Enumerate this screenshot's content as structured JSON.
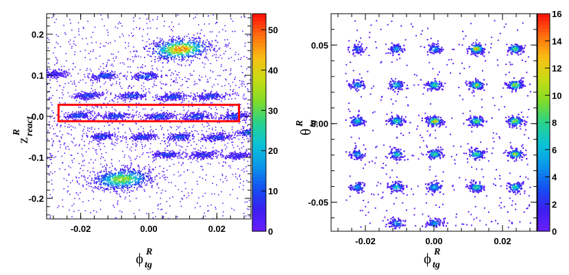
{
  "chart_data": [
    {
      "type": "heatmap",
      "xlabel": {
        "symbol": "ϕ",
        "sup": "R",
        "sub": "tg"
      },
      "ylabel": {
        "symbol": "z",
        "sup": "R",
        "sub": "react"
      },
      "xlim": [
        -0.03,
        0.03
      ],
      "ylim": [
        -0.25,
        0.25
      ],
      "xticks": [
        -0.02,
        0.0,
        0.02
      ],
      "xtick_labels": [
        "-0.02",
        "0.00",
        "0.02"
      ],
      "yticks": [
        -0.2,
        -0.1,
        0.0,
        0.1,
        0.2
      ],
      "ytick_labels": [
        "-0.2",
        "-0.1",
        "0.0",
        "0.1",
        "0.2"
      ],
      "zlim": [
        0,
        54
      ],
      "zticks": [
        0,
        10,
        20,
        30,
        40,
        50
      ],
      "ztick_labels": [
        "0",
        "10",
        "20",
        "30",
        "40",
        "50"
      ],
      "highlight_box": {
        "x": [
          -0.0265,
          0.0265
        ],
        "y": [
          -0.012,
          0.028
        ],
        "color": "#ff0000"
      },
      "clusters": [
        {
          "x": 0.009,
          "y": 0.165,
          "peak": 54
        },
        {
          "x": -0.008,
          "y": -0.152,
          "peak": 40
        },
        {
          "x": -0.028,
          "y": 0.104,
          "peak": 6
        },
        {
          "x": -0.013,
          "y": 0.1,
          "peak": 12
        },
        {
          "x": -0.001,
          "y": 0.099,
          "peak": 14
        },
        {
          "x": -0.018,
          "y": 0.052,
          "peak": 10
        },
        {
          "x": -0.005,
          "y": 0.051,
          "peak": 12
        },
        {
          "x": 0.007,
          "y": 0.049,
          "peak": 12
        },
        {
          "x": 0.018,
          "y": 0.05,
          "peak": 10
        },
        {
          "x": -0.021,
          "y": 0.003,
          "peak": 12
        },
        {
          "x": -0.01,
          "y": 0.002,
          "peak": 12
        },
        {
          "x": 0.003,
          "y": 0.001,
          "peak": 12
        },
        {
          "x": 0.014,
          "y": 0.001,
          "peak": 12
        },
        {
          "x": 0.025,
          "y": 0.001,
          "peak": 12
        },
        {
          "x": -0.014,
          "y": -0.048,
          "peak": 10
        },
        {
          "x": -0.002,
          "y": -0.049,
          "peak": 10
        },
        {
          "x": 0.009,
          "y": -0.049,
          "peak": 12
        },
        {
          "x": 0.02,
          "y": -0.05,
          "peak": 10
        },
        {
          "x": 0.03,
          "y": -0.038,
          "peak": 20
        },
        {
          "x": 0.005,
          "y": -0.092,
          "peak": 10
        },
        {
          "x": 0.016,
          "y": -0.093,
          "peak": 8
        },
        {
          "x": 0.026,
          "y": -0.095,
          "peak": 6
        }
      ]
    },
    {
      "type": "heatmap",
      "xlabel": {
        "symbol": "ϕ",
        "sup": "R",
        "sub": "tg"
      },
      "ylabel": {
        "symbol": "θ",
        "sup": "R",
        "sub": "tg"
      },
      "xlim": [
        -0.03,
        0.03
      ],
      "ylim": [
        -0.0685,
        0.07
      ],
      "xticks": [
        -0.02,
        0.0,
        0.02
      ],
      "xtick_labels": [
        "-0.02",
        "0.00",
        "0.02"
      ],
      "yticks": [
        -0.05,
        0.0,
        0.05
      ],
      "ytick_labels": [
        "-0.05",
        "0.00",
        "0.05"
      ],
      "zlim": [
        0,
        16
      ],
      "zticks": [
        0,
        2,
        4,
        6,
        8,
        10,
        12,
        14,
        16
      ],
      "ztick_labels": [
        "0",
        "2",
        "4",
        "6",
        "8",
        "10",
        "12",
        "14",
        "16"
      ],
      "grid_x": [
        -0.0225,
        -0.0111,
        0.0,
        0.0122,
        0.0235
      ],
      "grid_y": [
        0.048,
        0.025,
        0.002,
        -0.019,
        -0.04
      ],
      "extra_clusters": [
        {
          "x": -0.0111,
          "y": -0.063,
          "peak": 6
        },
        {
          "x": 0.0,
          "y": -0.063,
          "peak": 6
        }
      ],
      "cluster_peaks": [
        [
          4,
          6,
          6,
          16,
          10
        ],
        [
          6,
          8,
          10,
          12,
          14
        ],
        [
          8,
          10,
          16,
          12,
          14
        ],
        [
          6,
          8,
          10,
          10,
          12
        ],
        [
          6,
          8,
          8,
          10,
          10
        ]
      ]
    }
  ]
}
